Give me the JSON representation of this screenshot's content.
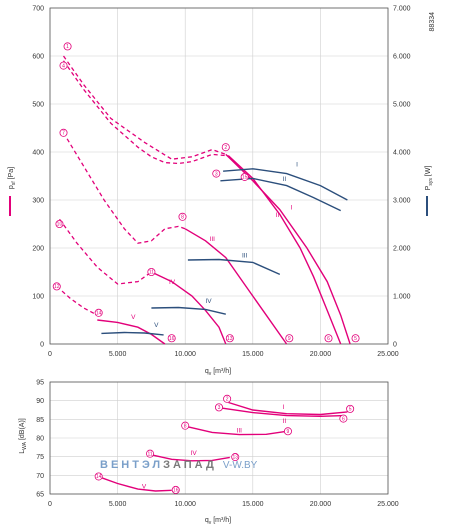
{
  "chart_id": "88334",
  "colors": {
    "pressure": "#e2007a",
    "power": "#2c4f7c",
    "grid": "#cfcfcf",
    "axis": "#555555",
    "watermark_blue": "#7a9fc9",
    "watermark_grey": "#7a7a7a"
  },
  "watermark": {
    "part1": "ВЕНТЭЛ",
    "part2": "ЗАПАД",
    "part3": "V-W.BY"
  },
  "chart_data": [
    {
      "type": "line",
      "x_unit": "m3/h",
      "xlim": [
        0,
        25000
      ],
      "x_ticks": [
        "0",
        "5.000",
        "10.000",
        "15.000",
        "20.000",
        "25.000"
      ],
      "ylim_left": [
        0,
        700
      ],
      "y_ticks_left": [
        "0",
        "100",
        "200",
        "300",
        "400",
        "500",
        "600",
        "700"
      ],
      "ylim_right": [
        0,
        7000
      ],
      "y_ticks_right": [
        "0",
        "1.000",
        "2.000",
        "3.000",
        "4.000",
        "5.000",
        "6.000",
        "7.000"
      ],
      "xlabel_main": "q",
      "xlabel_sub": "v",
      "xlabel_unit": " [m³/h]",
      "ylabel_left_main": "p",
      "ylabel_left_sub": "sf",
      "ylabel_left_unit": " [Pa]",
      "ylabel_right_main": "P",
      "ylabel_right_sub": "sys",
      "ylabel_right_unit": " [W]",
      "pressure_dashed": [
        {
          "x": [
            1000,
            2500,
            4500,
            7000,
            9000,
            10500,
            12000,
            13000
          ],
          "y": [
            600,
            540,
            470,
            420,
            385,
            390,
            405,
            395
          ]
        },
        {
          "x": [
            1000,
            2500,
            4500,
            6500,
            7500,
            8500,
            9500,
            10500,
            12000,
            13200
          ],
          "y": [
            590,
            530,
            460,
            410,
            390,
            378,
            376,
            380,
            395,
            392
          ]
        },
        {
          "x": [
            1000,
            2500,
            4000,
            5500,
            6500,
            7500,
            8500,
            9500,
            10000
          ],
          "y": [
            440,
            370,
            300,
            240,
            210,
            215,
            240,
            245,
            240
          ]
        },
        {
          "x": [
            700,
            2000,
            3500,
            5000,
            6500,
            7500
          ],
          "y": [
            260,
            210,
            160,
            125,
            130,
            150
          ]
        },
        {
          "x": [
            500,
            1500,
            2500,
            3500
          ],
          "y": [
            120,
            95,
            75,
            60
          ]
        }
      ],
      "pressure_series": [
        {
          "name": "I",
          "x": [
            13000,
            15000,
            17000,
            19000,
            20500,
            21500,
            22200
          ],
          "y": [
            395,
            340,
            280,
            200,
            130,
            60,
            0
          ]
        },
        {
          "name": "II",
          "x": [
            13200,
            15000,
            17000,
            18500,
            19500,
            20500,
            21500
          ],
          "y": [
            392,
            345,
            270,
            200,
            140,
            70,
            0
          ]
        },
        {
          "name": "III",
          "x": [
            10000,
            11500,
            13000,
            14500,
            16000,
            17500
          ],
          "y": [
            240,
            215,
            180,
            120,
            60,
            0
          ]
        },
        {
          "name": "IV",
          "x": [
            7500,
            9000,
            10500,
            11500,
            12500,
            13000
          ],
          "y": [
            150,
            130,
            100,
            70,
            35,
            0
          ]
        },
        {
          "name": "V",
          "x": [
            3500,
            5000,
            6500,
            7500,
            8500
          ],
          "y": [
            50,
            45,
            35,
            20,
            0
          ]
        }
      ],
      "power_series": [
        {
          "name": "I",
          "x": [
            12800,
            15000,
            17500,
            20000,
            22000
          ],
          "y": [
            3600,
            3650,
            3550,
            3300,
            3000
          ]
        },
        {
          "name": "II",
          "x": [
            12600,
            15000,
            17500,
            19500,
            21500
          ],
          "y": [
            3400,
            3450,
            3300,
            3050,
            2780
          ]
        },
        {
          "name": "III",
          "x": [
            10200,
            12500,
            15000,
            17000
          ],
          "y": [
            1750,
            1760,
            1700,
            1450
          ]
        },
        {
          "name": "IV",
          "x": [
            7500,
            9500,
            11500,
            13000
          ],
          "y": [
            750,
            760,
            720,
            620
          ]
        },
        {
          "name": "V",
          "x": [
            3800,
            5500,
            7000,
            8400
          ],
          "y": [
            220,
            240,
            230,
            190
          ]
        }
      ],
      "markers": [
        {
          "label": "1",
          "x": 1300,
          "y": 620
        },
        {
          "label": "4",
          "x": 1000,
          "y": 580
        },
        {
          "label": "2",
          "x": 13000,
          "y": 410
        },
        {
          "label": "3",
          "x": 12300,
          "y": 355
        },
        {
          "label": "7",
          "x": 1000,
          "y": 440
        },
        {
          "label": "8",
          "x": 9800,
          "y": 265
        },
        {
          "label": "10",
          "x": 700,
          "y": 250
        },
        {
          "label": "11",
          "x": 7500,
          "y": 150
        },
        {
          "label": "12",
          "x": 500,
          "y": 120
        },
        {
          "label": "14",
          "x": 3600,
          "y": 65
        },
        {
          "label": "16",
          "x": 9000,
          "y": 12
        },
        {
          "label": "13",
          "x": 13300,
          "y": 12
        },
        {
          "label": "9",
          "x": 17700,
          "y": 12
        },
        {
          "label": "6",
          "x": 20600,
          "y": 12
        },
        {
          "label": "5",
          "x": 22600,
          "y": 12
        },
        {
          "label": "15",
          "x": 14400,
          "y": 348
        }
      ],
      "label_positions": [
        {
          "label": "I",
          "x": 18200,
          "y": 370,
          "color": "#2c4f7c"
        },
        {
          "label": "II",
          "x": 17200,
          "y": 340,
          "color": "#2c4f7c"
        },
        {
          "label": "III",
          "x": 14200,
          "y": 180,
          "color": "#2c4f7c"
        },
        {
          "label": "IV",
          "x": 11500,
          "y": 85,
          "color": "#2c4f7c"
        },
        {
          "label": "V",
          "x": 7700,
          "y": 35,
          "color": "#2c4f7c"
        },
        {
          "label": "I",
          "x": 17800,
          "y": 280,
          "color": "#e2007a"
        },
        {
          "label": "II",
          "x": 16700,
          "y": 265,
          "color": "#e2007a"
        },
        {
          "label": "III",
          "x": 11800,
          "y": 215,
          "color": "#e2007a"
        },
        {
          "label": "IV",
          "x": 8800,
          "y": 125,
          "color": "#e2007a"
        },
        {
          "label": "V",
          "x": 6000,
          "y": 52,
          "color": "#e2007a"
        }
      ]
    },
    {
      "type": "line",
      "x_unit": "m3/h",
      "xlim": [
        0,
        25000
      ],
      "x_ticks": [
        "0",
        "5.000",
        "10.000",
        "15.000",
        "20.000",
        "25.000"
      ],
      "ylim": [
        65,
        95
      ],
      "y_ticks": [
        "65",
        "70",
        "75",
        "80",
        "85",
        "90",
        "95"
      ],
      "xlabel_main": "q",
      "xlabel_sub": "v",
      "xlabel_unit": " [m³/h]",
      "ylabel_main": "L",
      "ylabel_sub": "WA",
      "ylabel_unit": " [dB(A)]",
      "series": [
        {
          "name": "I",
          "x": [
            13200,
            15000,
            17500,
            20000,
            22000
          ],
          "y": [
            89.5,
            87.5,
            86.5,
            86.3,
            87.0
          ]
        },
        {
          "name": "II",
          "x": [
            12700,
            15000,
            17500,
            20000,
            21800
          ],
          "y": [
            88.0,
            86.8,
            86.0,
            85.8,
            86.0
          ]
        },
        {
          "name": "III",
          "x": [
            10200,
            12000,
            14000,
            16000,
            17500
          ],
          "y": [
            83.0,
            81.5,
            80.9,
            81.0,
            81.8
          ]
        },
        {
          "name": "IV",
          "x": [
            7500,
            9000,
            10500,
            12000,
            13300
          ],
          "y": [
            75.5,
            74.3,
            73.9,
            74.0,
            74.8
          ]
        },
        {
          "name": "V",
          "x": [
            3700,
            5000,
            6500,
            7800,
            9000
          ],
          "y": [
            69.5,
            67.8,
            66.3,
            65.8,
            66.0
          ]
        }
      ],
      "markers": [
        {
          "label": "2",
          "x": 13100,
          "y": 90.5
        },
        {
          "label": "3",
          "x": 12500,
          "y": 88.2
        },
        {
          "label": "5",
          "x": 22200,
          "y": 87.8
        },
        {
          "label": "6",
          "x": 21700,
          "y": 85.2
        },
        {
          "label": "8",
          "x": 10000,
          "y": 83.3
        },
        {
          "label": "9",
          "x": 17600,
          "y": 81.8
        },
        {
          "label": "11",
          "x": 7400,
          "y": 75.8
        },
        {
          "label": "13",
          "x": 13700,
          "y": 74.9
        },
        {
          "label": "14",
          "x": 3600,
          "y": 69.7
        },
        {
          "label": "16",
          "x": 9300,
          "y": 66.1
        }
      ],
      "label_positions": [
        {
          "label": "I",
          "x": 17200,
          "y": 87.8
        },
        {
          "label": "II",
          "x": 17200,
          "y": 84.0
        },
        {
          "label": "III",
          "x": 13800,
          "y": 81.5
        },
        {
          "label": "IV",
          "x": 10400,
          "y": 75.5
        },
        {
          "label": "V",
          "x": 6800,
          "y": 66.5
        }
      ]
    }
  ]
}
